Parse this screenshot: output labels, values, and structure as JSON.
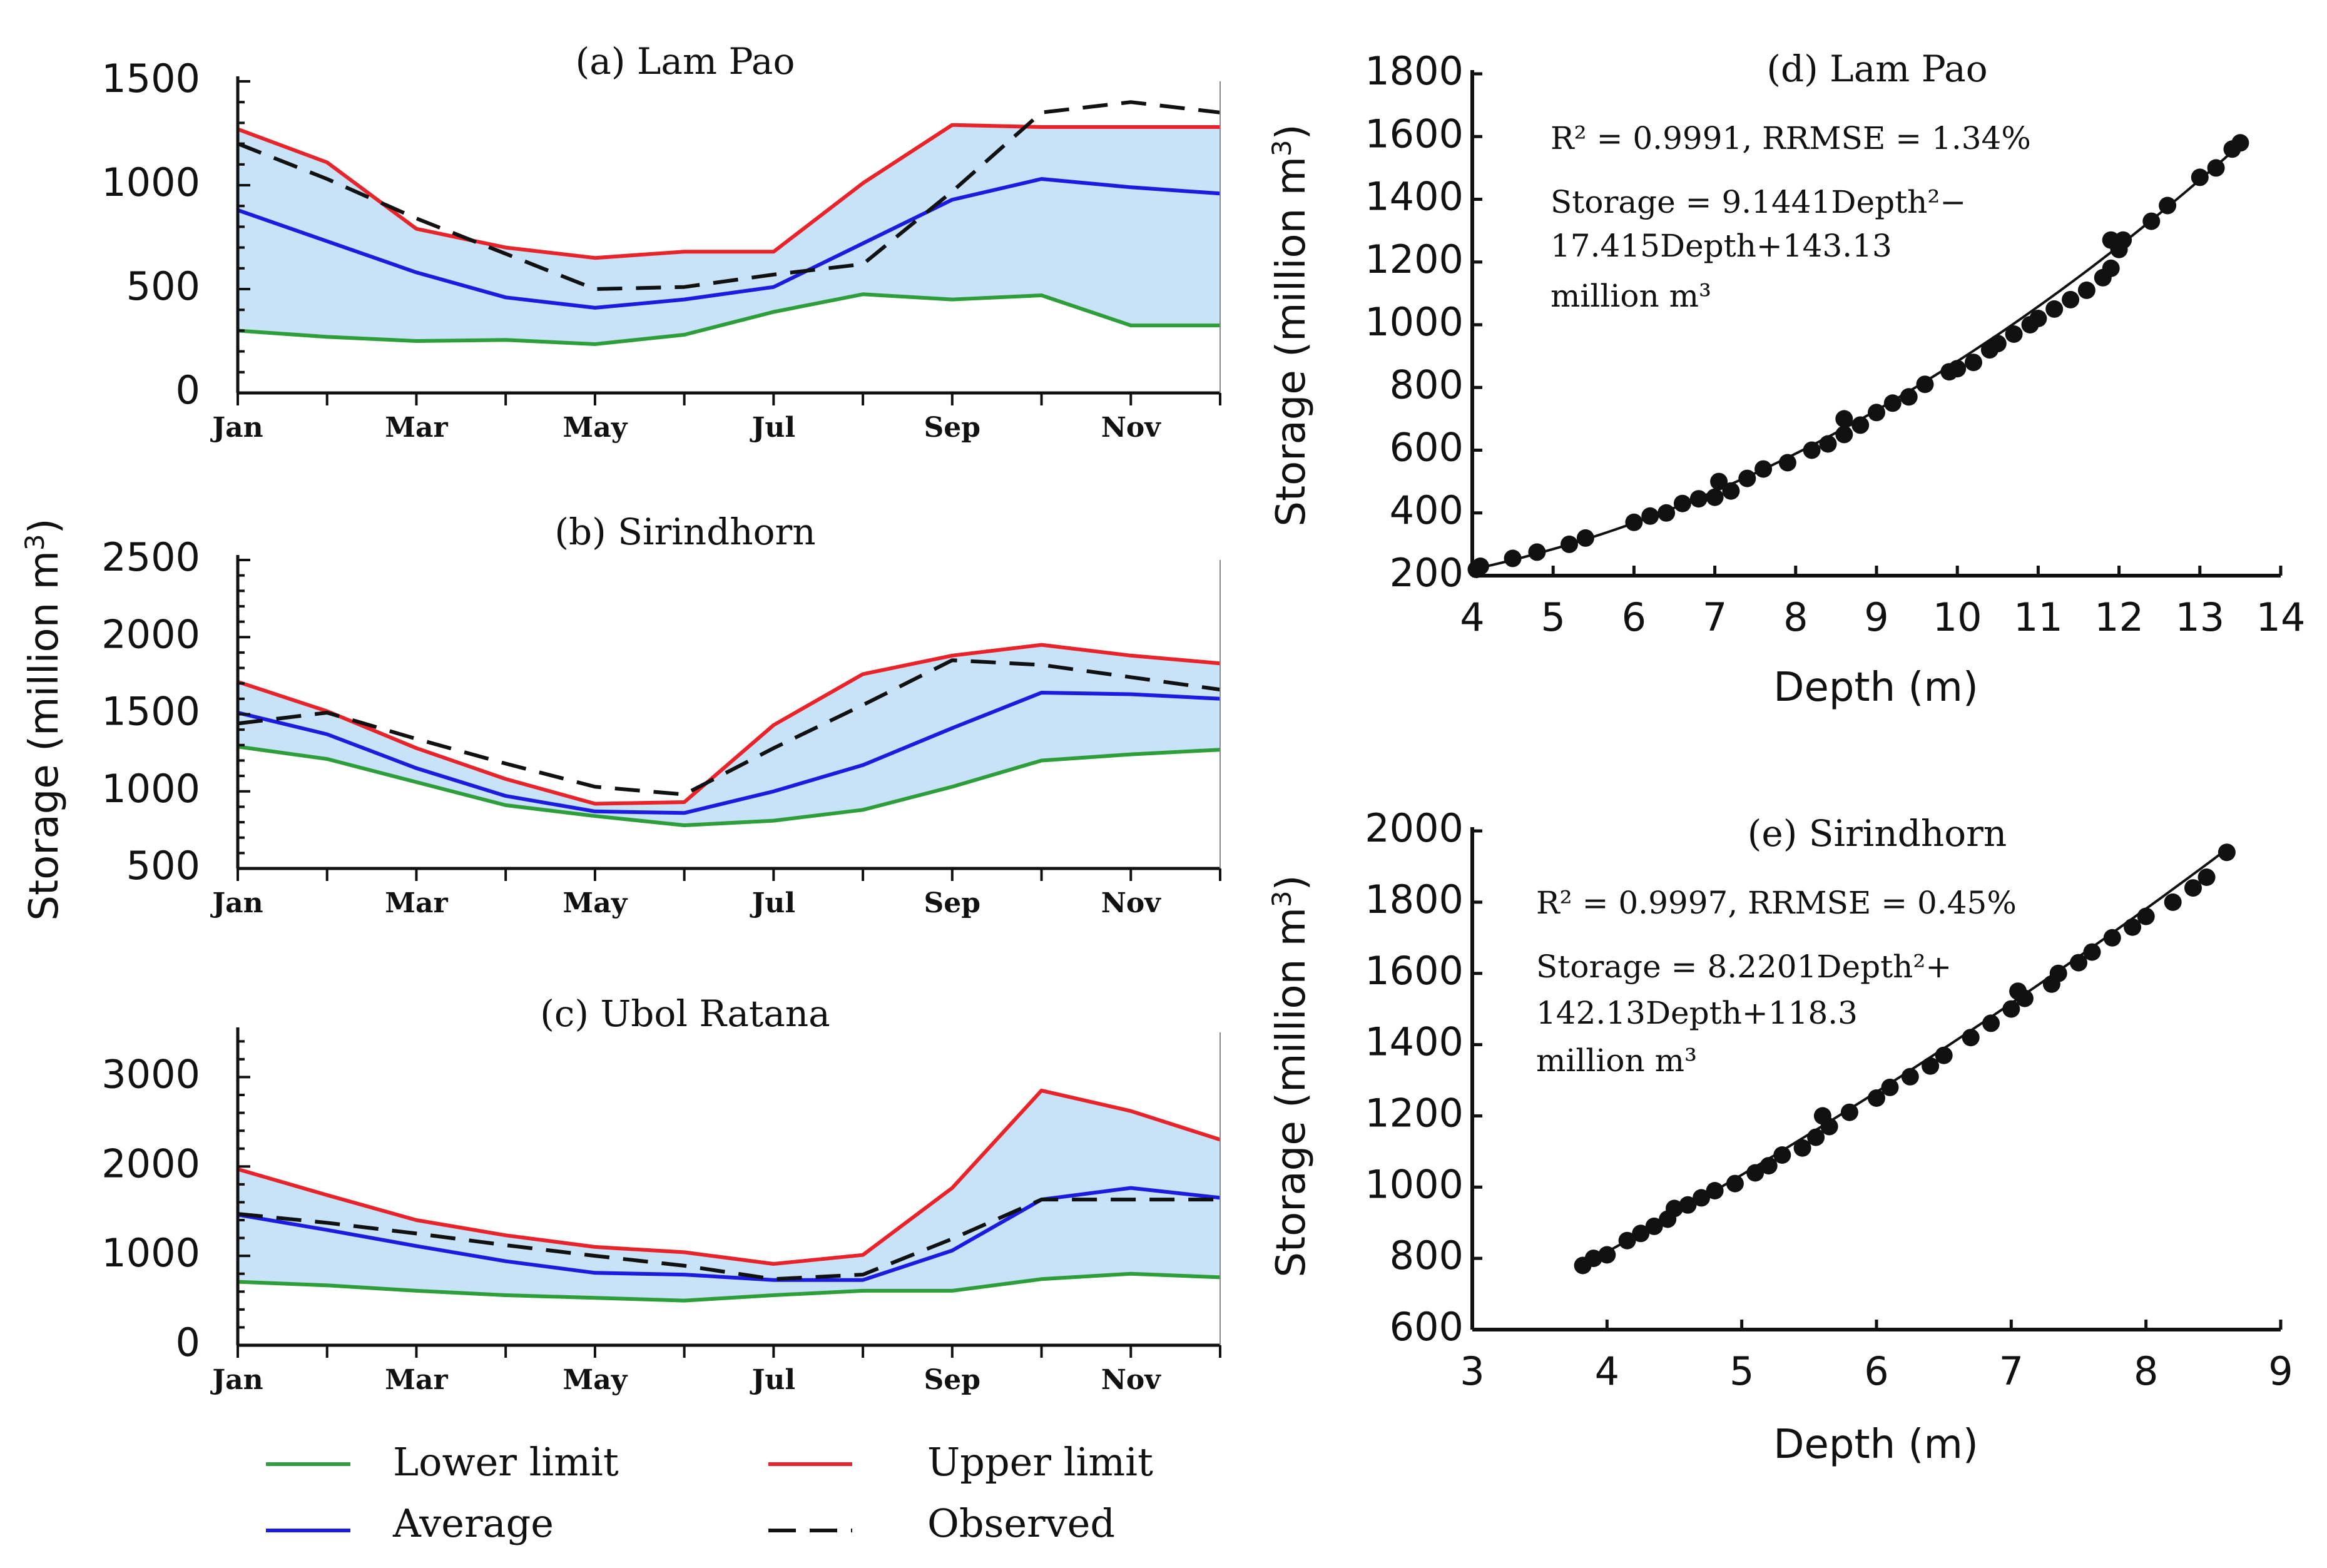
{
  "colors": {
    "lower": "#2e9e3b",
    "upper": "#e8242a",
    "average": "#1c1ce0",
    "observed": "#111111",
    "band": "#c8e2f7"
  },
  "shared_ylabel": "Storage (million m",
  "shared_ylabel_sup": "3",
  "shared_ylabel_close": ")",
  "legend": {
    "lower": "Lower limit",
    "upper": "Upper limit",
    "average": "Average",
    "observed": "Observed"
  },
  "chart_data": [
    {
      "id": "a",
      "type": "line",
      "title": "(a) Lam Pao",
      "x": [
        1,
        2,
        3,
        4,
        5,
        6,
        7,
        8,
        9,
        10,
        11,
        12
      ],
      "xtick_labels": [
        "Jan",
        "Mar",
        "May",
        "Jul",
        "Sep",
        "Nov"
      ],
      "ylim": [
        0,
        1500
      ],
      "yticks": [
        0,
        500,
        1000,
        1500
      ],
      "series": [
        {
          "name": "Upper limit",
          "values": [
            1270,
            1110,
            790,
            700,
            650,
            680,
            680,
            1010,
            1290,
            1280,
            1280,
            1280
          ]
        },
        {
          "name": "Average",
          "values": [
            880,
            730,
            580,
            460,
            410,
            450,
            510,
            720,
            930,
            1030,
            990,
            960
          ]
        },
        {
          "name": "Lower limit",
          "values": [
            300,
            270,
            250,
            255,
            235,
            280,
            390,
            475,
            450,
            470,
            325,
            325
          ]
        },
        {
          "name": "Observed",
          "values": [
            1200,
            1030,
            840,
            670,
            500,
            510,
            570,
            620,
            970,
            1350,
            1400,
            1350
          ]
        }
      ]
    },
    {
      "id": "b",
      "type": "line",
      "title": "(b) Sirindhorn",
      "x": [
        1,
        2,
        3,
        4,
        5,
        6,
        7,
        8,
        9,
        10,
        11,
        12
      ],
      "xtick_labels": [
        "Jan",
        "Mar",
        "May",
        "Jul",
        "Sep",
        "Nov"
      ],
      "ylim": [
        500,
        2500
      ],
      "yticks": [
        500,
        1000,
        1500,
        2000,
        2500
      ],
      "series": [
        {
          "name": "Upper limit",
          "values": [
            1710,
            1520,
            1280,
            1080,
            920,
            930,
            1430,
            1760,
            1880,
            1950,
            1880,
            1830
          ]
        },
        {
          "name": "Average",
          "values": [
            1510,
            1370,
            1150,
            970,
            870,
            860,
            1000,
            1170,
            1410,
            1640,
            1630,
            1600
          ]
        },
        {
          "name": "Lower limit",
          "values": [
            1290,
            1210,
            1060,
            910,
            840,
            780,
            810,
            880,
            1030,
            1200,
            1240,
            1270
          ]
        },
        {
          "name": "Observed",
          "values": [
            1440,
            1510,
            1340,
            1180,
            1030,
            980,
            1280,
            1560,
            1850,
            1820,
            1740,
            1660
          ]
        }
      ]
    },
    {
      "id": "c",
      "type": "line",
      "title": "(c) Ubol Ratana",
      "x": [
        1,
        2,
        3,
        4,
        5,
        6,
        7,
        8,
        9,
        10,
        11,
        12
      ],
      "xtick_labels": [
        "Jan",
        "Mar",
        "May",
        "Jul",
        "Sep",
        "Nov"
      ],
      "ylim": [
        0,
        3500
      ],
      "yticks": [
        0,
        1000,
        2000,
        3000
      ],
      "series": [
        {
          "name": "Upper limit",
          "values": [
            1970,
            1680,
            1400,
            1230,
            1100,
            1040,
            910,
            1010,
            1760,
            2850,
            2620,
            2300
          ]
        },
        {
          "name": "Average",
          "values": [
            1460,
            1290,
            1110,
            940,
            810,
            790,
            730,
            730,
            1060,
            1630,
            1760,
            1650
          ]
        },
        {
          "name": "Lower limit",
          "values": [
            710,
            670,
            610,
            560,
            530,
            500,
            560,
            610,
            610,
            740,
            800,
            760
          ]
        },
        {
          "name": "Observed",
          "values": [
            1470,
            1370,
            1250,
            1120,
            1000,
            890,
            740,
            790,
            1190,
            1630,
            1630,
            1630
          ]
        }
      ]
    },
    {
      "id": "d",
      "type": "scatter",
      "title": "(d) Lam Pao",
      "xlabel": "Depth (m)",
      "xlim": [
        4,
        14
      ],
      "xticks": [
        4,
        5,
        6,
        7,
        8,
        9,
        10,
        11,
        12,
        13,
        14
      ],
      "ylim": [
        200,
        1800
      ],
      "yticks": [
        200,
        400,
        600,
        800,
        1000,
        1200,
        1400,
        1600,
        1800
      ],
      "annotations": [
        "R² = 0.9991, RRMSE = 1.34%",
        "Storage = 9.1441Depth²−",
        "17.415Depth+143.13",
        "million m³"
      ],
      "fit": {
        "a": 9.1441,
        "b": -17.415,
        "c": 143.13,
        "xmin": 4.0,
        "xmax": 13.55
      },
      "points": [
        [
          4.05,
          220
        ],
        [
          4.1,
          230
        ],
        [
          4.5,
          255
        ],
        [
          4.8,
          275
        ],
        [
          5.2,
          300
        ],
        [
          5.4,
          320
        ],
        [
          6.0,
          370
        ],
        [
          6.2,
          390
        ],
        [
          6.4,
          400
        ],
        [
          6.6,
          430
        ],
        [
          6.8,
          445
        ],
        [
          7.0,
          450
        ],
        [
          7.05,
          500
        ],
        [
          7.2,
          470
        ],
        [
          7.4,
          510
        ],
        [
          7.6,
          540
        ],
        [
          7.9,
          560
        ],
        [
          8.2,
          600
        ],
        [
          8.4,
          620
        ],
        [
          8.6,
          650
        ],
        [
          8.6,
          700
        ],
        [
          8.8,
          680
        ],
        [
          9.0,
          720
        ],
        [
          9.2,
          750
        ],
        [
          9.4,
          770
        ],
        [
          9.6,
          810
        ],
        [
          9.9,
          850
        ],
        [
          10.0,
          860
        ],
        [
          10.2,
          880
        ],
        [
          10.4,
          920
        ],
        [
          10.5,
          940
        ],
        [
          10.7,
          970
        ],
        [
          10.9,
          1000
        ],
        [
          11.0,
          1020
        ],
        [
          11.2,
          1050
        ],
        [
          11.4,
          1080
        ],
        [
          11.6,
          1110
        ],
        [
          11.8,
          1150
        ],
        [
          11.9,
          1180
        ],
        [
          11.9,
          1270
        ],
        [
          12.05,
          1270
        ],
        [
          12.0,
          1240
        ],
        [
          12.4,
          1330
        ],
        [
          12.6,
          1380
        ],
        [
          13.0,
          1470
        ],
        [
          13.2,
          1500
        ],
        [
          13.4,
          1560
        ],
        [
          13.5,
          1580
        ]
      ]
    },
    {
      "id": "e",
      "type": "scatter",
      "title": "(e) Sirindhorn",
      "xlabel": "Depth (m)",
      "xlim": [
        3,
        9
      ],
      "xticks": [
        3,
        4,
        5,
        6,
        7,
        8,
        9
      ],
      "ylim": [
        600,
        2000
      ],
      "yticks": [
        600,
        800,
        1000,
        1200,
        1400,
        1600,
        1800,
        2000
      ],
      "annotations": [
        "R² = 0.9997, RRMSE = 0.45%",
        "Storage = 8.2201Depth²+",
        "142.13Depth+118.3",
        "million m³"
      ],
      "fit": {
        "a": 8.2201,
        "b": 142.13,
        "c": 118.3,
        "xmin": 3.8,
        "xmax": 8.6
      },
      "points": [
        [
          3.82,
          780
        ],
        [
          3.9,
          800
        ],
        [
          4.0,
          810
        ],
        [
          4.15,
          850
        ],
        [
          4.25,
          870
        ],
        [
          4.35,
          890
        ],
        [
          4.45,
          910
        ],
        [
          4.5,
          940
        ],
        [
          4.6,
          950
        ],
        [
          4.7,
          970
        ],
        [
          4.8,
          990
        ],
        [
          4.95,
          1010
        ],
        [
          5.1,
          1040
        ],
        [
          5.2,
          1060
        ],
        [
          5.3,
          1090
        ],
        [
          5.45,
          1110
        ],
        [
          5.55,
          1140
        ],
        [
          5.6,
          1200
        ],
        [
          5.65,
          1170
        ],
        [
          5.8,
          1210
        ],
        [
          6.0,
          1250
        ],
        [
          6.1,
          1280
        ],
        [
          6.25,
          1310
        ],
        [
          6.4,
          1340
        ],
        [
          6.5,
          1370
        ],
        [
          6.7,
          1420
        ],
        [
          6.85,
          1460
        ],
        [
          7.0,
          1500
        ],
        [
          7.05,
          1550
        ],
        [
          7.1,
          1530
        ],
        [
          7.3,
          1570
        ],
        [
          7.35,
          1600
        ],
        [
          7.5,
          1630
        ],
        [
          7.6,
          1660
        ],
        [
          7.75,
          1700
        ],
        [
          7.9,
          1730
        ],
        [
          8.0,
          1760
        ],
        [
          8.2,
          1800
        ],
        [
          8.35,
          1840
        ],
        [
          8.45,
          1870
        ],
        [
          8.6,
          1940
        ]
      ]
    }
  ]
}
